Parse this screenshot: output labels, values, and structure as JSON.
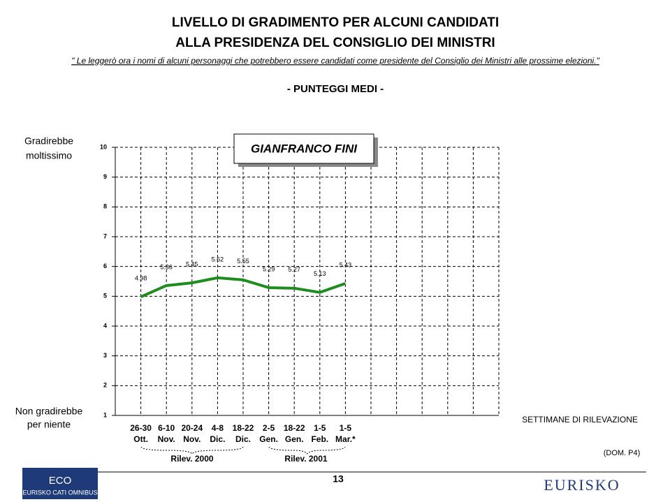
{
  "chart_data": {
    "type": "line",
    "title": [
      "LIVELLO DI GRADIMENTO PER ALCUNI CANDIDATI",
      "ALLA PRESIDENZA DEL CONSIGLIO DEI MINISTRI"
    ],
    "subtitle": "\" Le leggerò ora i nomi di alcuni personaggi che potrebbero essere candidati come presidente del Consiglio dei Ministri alle prossime elezioni.\"",
    "section_title": "- PUNTEGGI MEDI -",
    "y_top_label": [
      "Gradirebbe",
      "moltissimo"
    ],
    "y_bottom_label": [
      "Non gradirebbe",
      "per niente"
    ],
    "x_label": "SETTIMANE DI RILEVAZIONE",
    "source_note": "(DOM. P4)",
    "groups": [
      "Rilev. 2000",
      "Rilev. 2001"
    ],
    "categories": [
      [
        "26-30",
        "Ott."
      ],
      [
        "6-10",
        "Nov."
      ],
      [
        "20-24",
        "Nov."
      ],
      [
        "4-8",
        "Dic."
      ],
      [
        "18-22",
        "Dic."
      ],
      [
        "2-5",
        "Gen."
      ],
      [
        "18-22",
        "Gen."
      ],
      [
        "1-5",
        "Feb."
      ],
      [
        "1-5",
        "Mar.*"
      ]
    ],
    "series": [
      {
        "name": "GIANFRANCO FINI",
        "color": "#1e8c1e",
        "values": [
          4.98,
          5.36,
          5.45,
          5.62,
          5.55,
          5.29,
          5.27,
          5.13,
          5.43
        ]
      }
    ],
    "ylim": [
      1,
      10
    ],
    "yticks": [
      1,
      2,
      3,
      4,
      5,
      6,
      7,
      8,
      9,
      10
    ],
    "grid": true,
    "page_number": "13",
    "logo_left": [
      "ECO",
      "EURISKO CATI OMNIBUS"
    ],
    "logo_right": "EURISKO"
  }
}
